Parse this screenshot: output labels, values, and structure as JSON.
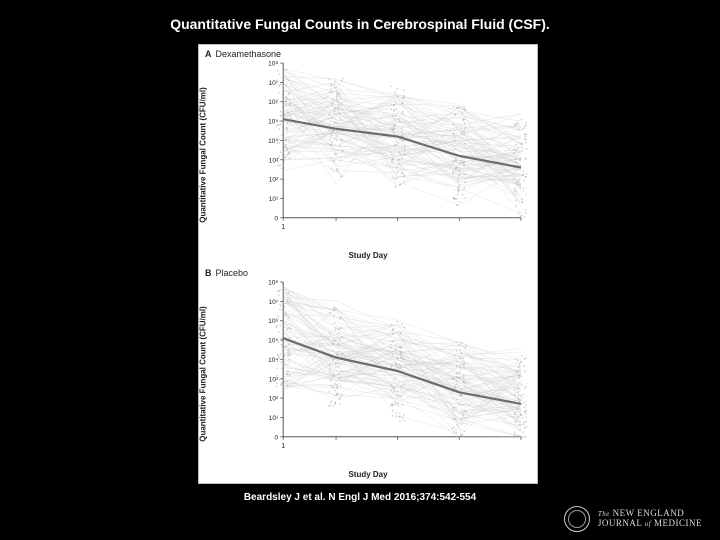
{
  "title": "Quantitative Fungal Counts in Cerebrospinal Fluid (CSF).",
  "citation": "Beardsley J et al. N Engl J Med 2016;374:542-554",
  "logo": {
    "line1": "The NEW ENGLAND",
    "line2_a": "JOURNAL",
    "line2_of": "of",
    "line2_b": "MEDICINE"
  },
  "colors": {
    "page_bg": "#000000",
    "figure_bg": "#ffffff",
    "axis": "#555555",
    "spaghetti": "#c8c8c8",
    "point": "#a0a0a0",
    "mean_line": "#6d6d6d",
    "text": "#222222"
  },
  "panels": [
    {
      "id": "A",
      "label": "A",
      "sublabel": "Dexamethasone",
      "ylabel": "Quantitative Fungal Count\n(CFU/ml)",
      "xlabel": "Study Day",
      "x_ticks": [
        1,
        7,
        14,
        21,
        28
      ],
      "x_tick_labels": [
        "1",
        "",
        "",
        "",
        ""
      ],
      "y_log_exp": [
        0,
        1,
        2,
        3,
        4,
        5,
        6,
        7,
        8
      ],
      "y_tick_labels": [
        "0",
        "10¹",
        "10²",
        "10³",
        "10⁴",
        "10⁵",
        "10⁶",
        "10⁷",
        "10⁸"
      ],
      "n_spaghetti": 90,
      "n_jitter_per_day": 80,
      "mean_line_y": {
        "1": 5.1,
        "7": 4.6,
        "14": 4.2,
        "21": 3.2,
        "28": 2.6
      },
      "line_width_mean": 2.2,
      "line_width_thin": 0.4,
      "point_radius": 0.8,
      "seed": 17
    },
    {
      "id": "B",
      "label": "B",
      "sublabel": "Placebo",
      "ylabel": "Quantitative Fungal Count\n(CFU/ml)",
      "xlabel": "Study Day",
      "x_ticks": [
        1,
        7,
        14,
        21,
        28
      ],
      "x_tick_labels": [
        "1",
        "",
        "",
        "",
        ""
      ],
      "y_log_exp": [
        0,
        1,
        2,
        3,
        4,
        5,
        6,
        7,
        8
      ],
      "y_tick_labels": [
        "0",
        "10¹",
        "10²",
        "10³",
        "10⁴",
        "10⁵",
        "10⁶",
        "10⁷",
        "10⁸"
      ],
      "n_spaghetti": 90,
      "n_jitter_per_day": 80,
      "mean_line_y": {
        "1": 5.1,
        "7": 4.1,
        "14": 3.4,
        "21": 2.3,
        "28": 1.7
      },
      "line_width_mean": 2.2,
      "line_width_thin": 0.4,
      "point_radius": 0.8,
      "seed": 53
    }
  ]
}
